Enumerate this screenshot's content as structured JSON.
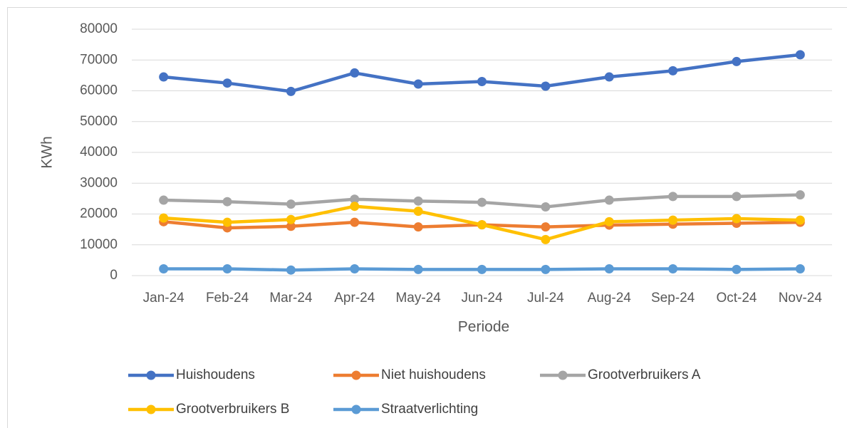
{
  "chart_data": {
    "type": "line",
    "x_label": "Periode",
    "y_label": "KWh",
    "categories": [
      "Jan-24",
      "Feb-24",
      "Mar-24",
      "Apr-24",
      "May-24",
      "Jun-24",
      "Jul-24",
      "Aug-24",
      "Sep-24",
      "Oct-24",
      "Nov-24"
    ],
    "series": [
      {
        "name": "Huishoudens",
        "color": "#4472c4",
        "values": [
          64500,
          62500,
          59800,
          65800,
          62200,
          63000,
          61500,
          64500,
          66500,
          69500,
          71700
        ]
      },
      {
        "name": "Niet huishoudens",
        "color": "#ed7d31",
        "values": [
          17500,
          15500,
          16000,
          17300,
          15800,
          16500,
          15800,
          16400,
          16700,
          17000,
          17300
        ]
      },
      {
        "name": "Grootverbruikers A",
        "color": "#a5a5a5",
        "values": [
          24500,
          24000,
          23200,
          24800,
          24200,
          23800,
          22300,
          24500,
          25700,
          25700,
          26200
        ]
      },
      {
        "name": "Grootverbruikers B",
        "color": "#ffc000",
        "values": [
          18700,
          17300,
          18200,
          22500,
          20900,
          16500,
          11700,
          17500,
          18000,
          18500,
          18000
        ]
      },
      {
        "name": "Straatverlichting",
        "color": "#5b9bd5",
        "values": [
          2200,
          2200,
          1800,
          2200,
          2000,
          2000,
          2000,
          2200,
          2200,
          2000,
          2200
        ]
      }
    ],
    "ylim": [
      0,
      80000
    ],
    "yticks": [
      0,
      10000,
      20000,
      30000,
      40000,
      50000,
      60000,
      70000,
      80000
    ],
    "grid": true,
    "legend": "bottom"
  }
}
